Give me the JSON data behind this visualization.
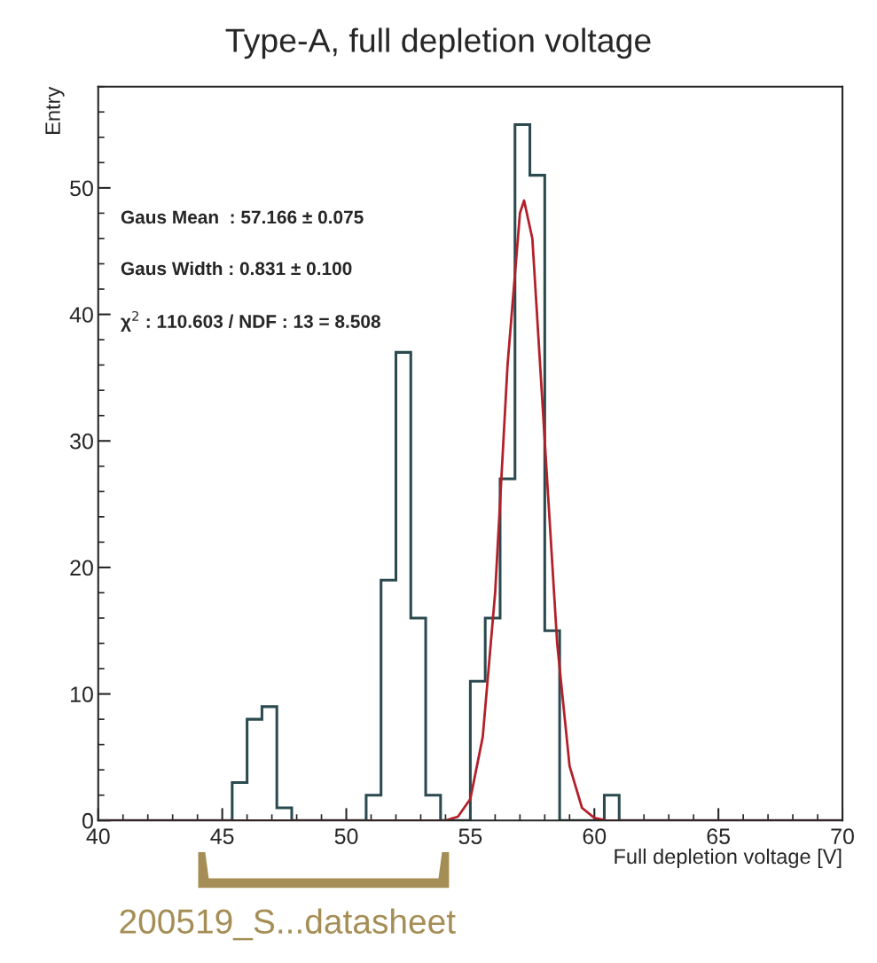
{
  "chart_data": {
    "type": "histogram",
    "title": "Type-A, full depletion voltage",
    "xlabel": "Full depletion voltage [V]",
    "ylabel": "Entry",
    "color": "#2b4a50",
    "bins": [
      40.0,
      40.6,
      41.2,
      41.8,
      42.4,
      43.0,
      43.6,
      44.2,
      44.8,
      45.4,
      46.0,
      46.6,
      47.2,
      47.8,
      48.4,
      49.0,
      49.6,
      50.2,
      50.8,
      51.4,
      52.0,
      52.6,
      53.2,
      53.8,
      54.4,
      55.0,
      55.6,
      56.2,
      56.8,
      57.4,
      58.0,
      58.6,
      59.2,
      59.8,
      60.4,
      61.0,
      61.6,
      62.2,
      62.8,
      63.4,
      64.0,
      64.6,
      65.2,
      65.8,
      66.4,
      67.0,
      67.6,
      68.2,
      68.8,
      69.4,
      70.0
    ],
    "values": [
      0,
      0,
      0,
      0,
      0,
      0,
      0,
      0,
      0,
      3,
      8,
      9,
      1,
      0,
      0,
      0,
      0,
      0,
      2,
      19,
      37,
      16,
      2,
      0,
      0,
      11,
      16,
      27,
      55,
      51,
      15,
      0,
      0,
      0,
      2,
      0,
      0,
      0,
      0,
      0,
      0,
      0,
      0,
      0,
      0,
      0,
      0,
      0,
      0,
      0
    ],
    "series": [
      {
        "type": "line",
        "color": "#b3202a",
        "x": [
          40,
          54.0,
          54.5,
          55.0,
          55.5,
          56.0,
          56.5,
          57.0,
          57.166,
          57.5,
          58.0,
          58.5,
          59.0,
          59.5,
          60.0,
          60.5,
          70
        ],
        "values": [
          0,
          0,
          0.3,
          1.7,
          6.6,
          18,
          36,
          48,
          49,
          46,
          30,
          14,
          4.3,
          1,
          0.2,
          0,
          0
        ]
      }
    ],
    "xlim": [
      40,
      70
    ],
    "xticks": [
      40,
      45,
      50,
      55,
      60,
      65,
      70
    ],
    "ylim": [
      0,
      58
    ],
    "yticks": [
      0,
      10,
      20,
      30,
      40,
      50
    ],
    "grid": false,
    "legend": false,
    "annotations": [
      "Gaus Mean  : 57.166 ± 0.075",
      "Gaus Width : 0.831 ± 0.100",
      "χ$^{2}$ : 110.603 / NDF : 13 = 8.508",
      "200519_S...datasheet"
    ]
  }
}
